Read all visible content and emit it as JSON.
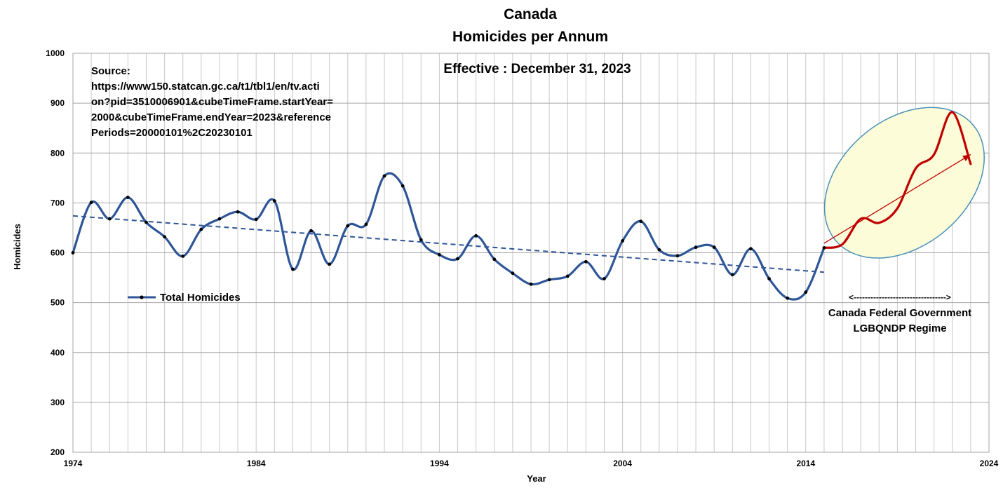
{
  "chart_data": {
    "type": "line",
    "title": "Canada",
    "subtitle": "Homicides per Annum",
    "xlabel": "Year",
    "ylabel": "Homicides",
    "xlim": [
      1974,
      2024
    ],
    "ylim": [
      200,
      1000
    ],
    "x_ticks": [
      1974,
      1984,
      1994,
      2004,
      2014,
      2024
    ],
    "y_ticks": [
      200,
      300,
      400,
      500,
      600,
      700,
      800,
      900,
      1000
    ],
    "grid": true,
    "legend_position": "left",
    "effective_note": "Effective : December 31, 2023",
    "source_lines": [
      "Source:",
      "https://www150.statcan.gc.ca/t1/tbl1/en/tv.acti",
      "on?pid=3510006901&cubeTimeFrame.startYear=",
      "2000&cubeTimeFrame.endYear=2023&reference",
      "Periods=20000101%2C20230101"
    ],
    "regime_label_lines": [
      "Canada Federal Government",
      "LGBQNDP Regime"
    ],
    "regime_arrow_text": "<--------------------------------->",
    "series": [
      {
        "name": "Total Homicides",
        "color": "#2e5597",
        "x": [
          1974,
          1975,
          1976,
          1977,
          1978,
          1979,
          1980,
          1981,
          1982,
          1983,
          1984,
          1985,
          1986,
          1987,
          1988,
          1989,
          1990,
          1991,
          1992,
          1993,
          1994,
          1995,
          1996,
          1997,
          1998,
          1999,
          2000,
          2001,
          2002,
          2003,
          2004,
          2005,
          2006,
          2007,
          2008,
          2009,
          2010,
          2011,
          2012,
          2013,
          2014,
          2015
        ],
        "values": [
          600,
          701,
          668,
          711,
          661,
          632,
          593,
          647,
          668,
          682,
          667,
          704,
          567,
          644,
          577,
          654,
          657,
          754,
          734,
          626,
          596,
          588,
          634,
          587,
          559,
          537,
          546,
          553,
          582,
          548,
          624,
          663,
          606,
          594,
          611,
          611,
          556,
          608,
          548,
          509,
          521,
          610
        ]
      },
      {
        "name": "",
        "color": "#c00000",
        "x": [
          2015,
          2016,
          2017,
          2018,
          2019,
          2020,
          2021,
          2022,
          2023
        ],
        "values": [
          610,
          617,
          668,
          660,
          689,
          769,
          797,
          882,
          778
        ]
      }
    ],
    "trend": {
      "style": "dashed",
      "color": "#2e5597",
      "x": [
        1974,
        2015
      ],
      "values": [
        674,
        561
      ]
    },
    "highlight": {
      "ellipse_fill": "#fcfcd8",
      "ellipse_stroke": "#4a90b8",
      "arrow_color": "#c00000",
      "arrow_from": {
        "x": 2015,
        "y": 619
      },
      "arrow_to": {
        "x": 2023,
        "y": 797
      }
    }
  }
}
